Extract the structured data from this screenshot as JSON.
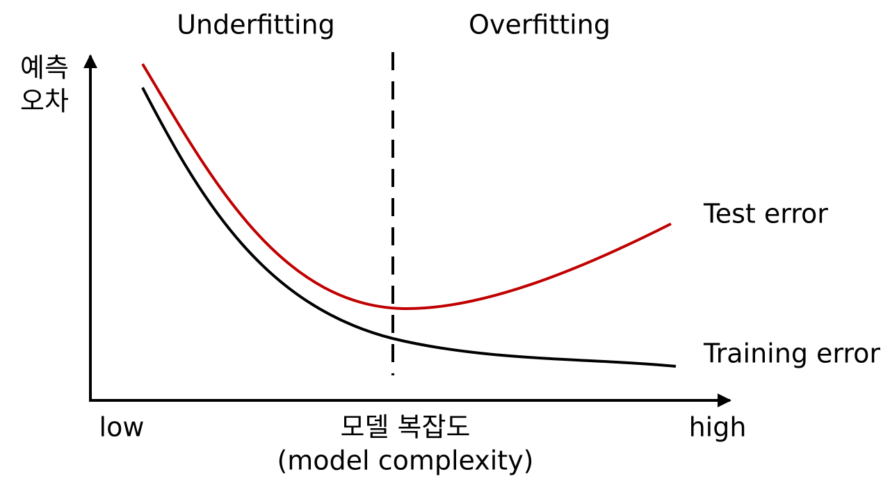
{
  "header": {
    "left_region": "Underfitting",
    "right_region": "Overfitting"
  },
  "y_axis": {
    "label_lines": [
      "예측",
      "오차"
    ]
  },
  "x_axis": {
    "low": "low",
    "label": "모델 복잡도",
    "label_en": "(model complexity)",
    "high": "high"
  },
  "curves": {
    "test": "Test error",
    "training": "Training error"
  }
}
